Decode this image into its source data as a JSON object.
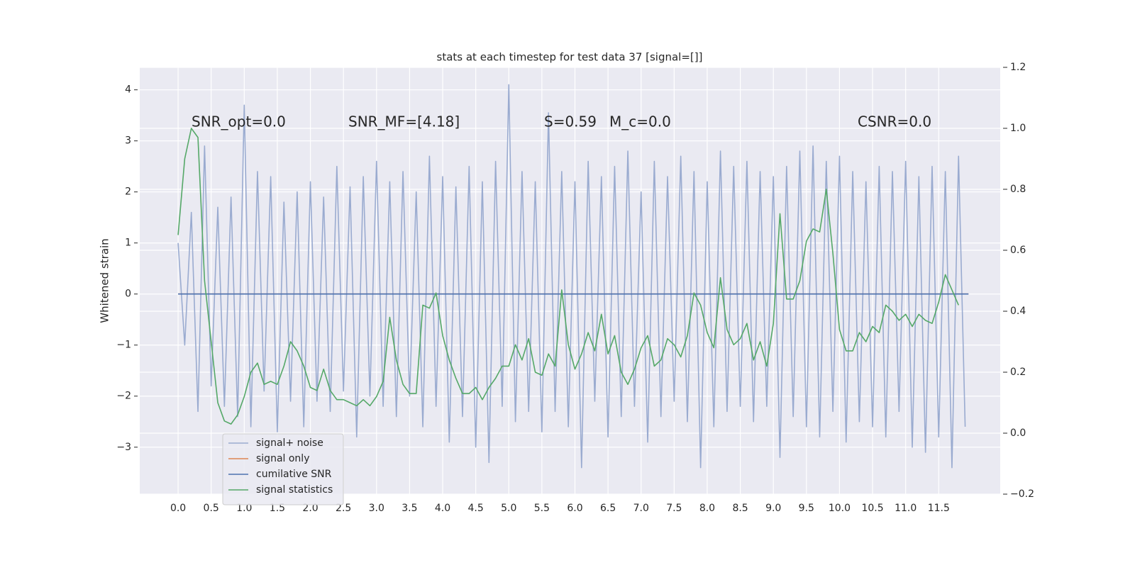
{
  "chart_data": {
    "type": "line",
    "title": "stats at each timestep for test data 37 [signal=[]]",
    "ylabel": "Whitened strain",
    "annotations": [
      "SNR_opt=0.0",
      "SNR_MF=[4.18]",
      "S=0.59",
      "M_c=0.0",
      "CSNR=0.0"
    ],
    "xlim": [
      -0.58,
      12.43
    ],
    "xticks": [
      {
        "value": 0,
        "label": "0.0"
      },
      0.5,
      {
        "value": 1,
        "label": "1.0"
      },
      1.5,
      {
        "value": 2,
        "label": "2.0"
      },
      2.5,
      {
        "value": 3,
        "label": "3.0"
      },
      3.5,
      {
        "value": 4,
        "label": "4.0"
      },
      4.5,
      {
        "value": 5,
        "label": "5.0"
      },
      5.5,
      {
        "value": 6,
        "label": "6.0"
      },
      6.5,
      {
        "value": 7,
        "label": "7.0"
      },
      7.5,
      {
        "value": 8,
        "label": "8.0"
      },
      8.5,
      {
        "value": 9,
        "label": "9.0"
      },
      9.5,
      {
        "value": 10,
        "label": "10.0"
      },
      10.5,
      {
        "value": 11,
        "label": "11.0"
      },
      11.5
    ],
    "ylim": [
      -3.92,
      4.44
    ],
    "yticks": [
      {
        "value": -3,
        "label": "−3"
      },
      {
        "value": -2,
        "label": "−2"
      },
      {
        "value": -1,
        "label": "−1"
      },
      0,
      1,
      2,
      3,
      4
    ],
    "y2lim": [
      -0.2,
      1.2
    ],
    "y2ticks": [
      {
        "value": -0.2,
        "label": "−0.2"
      },
      {
        "value": 0,
        "label": "0.0"
      },
      0.2,
      0.4,
      0.6,
      0.8,
      {
        "value": 1,
        "label": "1.0"
      },
      1.2
    ],
    "grid": true,
    "legend": "lower left",
    "series": [
      {
        "name": "signal+ noise",
        "color": "#9aabd0",
        "x": [
          0,
          0.1,
          0.2,
          0.3,
          0.4,
          0.5,
          0.6,
          0.7,
          0.8,
          0.9,
          1,
          1.1,
          1.2,
          1.3,
          1.4,
          1.5,
          1.6,
          1.7,
          1.8,
          1.9,
          2,
          2.1,
          2.2,
          2.3,
          2.4,
          2.5,
          2.6,
          2.7,
          2.8,
          2.9,
          3,
          3.1,
          3.2,
          3.3,
          3.4,
          3.5,
          3.6,
          3.7,
          3.8,
          3.9,
          4,
          4.1,
          4.2,
          4.3,
          4.4,
          4.5,
          4.6,
          4.7,
          4.8,
          4.9,
          5,
          5.1,
          5.2,
          5.3,
          5.4,
          5.5,
          5.6,
          5.7,
          5.8,
          5.9,
          6,
          6.1,
          6.2,
          6.3,
          6.4,
          6.5,
          6.6,
          6.7,
          6.8,
          6.9,
          7,
          7.1,
          7.2,
          7.3,
          7.4,
          7.5,
          7.6,
          7.7,
          7.8,
          7.9,
          8,
          8.1,
          8.2,
          8.3,
          8.4,
          8.5,
          8.6,
          8.7,
          8.8,
          8.9,
          9,
          9.1,
          9.2,
          9.3,
          9.4,
          9.5,
          9.6,
          9.7,
          9.8,
          9.9,
          10,
          10.1,
          10.2,
          10.3,
          10.4,
          10.5,
          10.6,
          10.7,
          10.8,
          10.9,
          11,
          11.1,
          11.2,
          11.3,
          11.4,
          11.5,
          11.6,
          11.7,
          11.8,
          11.9
        ],
        "values": [
          1.0,
          -1.0,
          1.6,
          -2.3,
          2.9,
          -1.8,
          1.7,
          -2.2,
          1.9,
          -2.4,
          3.7,
          -2.6,
          2.4,
          -1.9,
          2.3,
          -2.7,
          1.8,
          -2.1,
          2.0,
          -2.6,
          2.2,
          -2.1,
          1.9,
          -2.3,
          2.5,
          -1.9,
          2.1,
          -2.8,
          2.3,
          -2.0,
          2.6,
          -2.2,
          2.2,
          -2.4,
          2.4,
          -2.0,
          2.0,
          -2.6,
          2.7,
          -2.2,
          2.3,
          -2.9,
          2.1,
          -2.4,
          2.5,
          -3.0,
          2.2,
          -3.3,
          2.6,
          -2.2,
          4.1,
          -2.5,
          2.4,
          -2.3,
          2.2,
          -2.7,
          3.55,
          -2.3,
          2.4,
          -2.6,
          2.2,
          -3.4,
          2.6,
          -2.1,
          2.3,
          -2.8,
          2.5,
          -2.4,
          2.8,
          -2.2,
          2.0,
          -2.9,
          2.6,
          -2.4,
          2.3,
          -2.1,
          2.7,
          -2.5,
          2.4,
          -3.4,
          2.2,
          -2.6,
          2.8,
          -2.3,
          2.5,
          -2.2,
          2.6,
          -2.5,
          2.4,
          -2.2,
          2.3,
          -3.2,
          2.5,
          -2.4,
          2.8,
          -2.6,
          2.9,
          -2.8,
          2.6,
          -2.3,
          2.7,
          -2.9,
          2.4,
          -2.5,
          2.2,
          -2.6,
          2.5,
          -2.8,
          2.4,
          -2.3,
          2.6,
          -3.0,
          2.3,
          -3.1,
          2.5,
          -2.8,
          2.4,
          -3.4,
          2.7,
          -2.6
        ]
      },
      {
        "name": "signal only",
        "color": "#dd8452",
        "x": [
          0,
          11.95
        ],
        "values": [
          0,
          0
        ]
      },
      {
        "name": "cumilative SNR",
        "color": "#4c72b0",
        "x": [
          0,
          11.95
        ],
        "values": [
          0,
          0
        ]
      },
      {
        "name": "signal statistics",
        "color": "#55a868",
        "axis": "y2",
        "x": [
          0,
          0.1,
          0.2,
          0.3,
          0.4,
          0.5,
          0.6,
          0.7,
          0.8,
          0.9,
          1,
          1.1,
          1.2,
          1.3,
          1.4,
          1.5,
          1.6,
          1.7,
          1.8,
          1.9,
          2,
          2.1,
          2.2,
          2.3,
          2.4,
          2.5,
          2.6,
          2.7,
          2.8,
          2.9,
          3,
          3.1,
          3.2,
          3.3,
          3.4,
          3.5,
          3.6,
          3.7,
          3.8,
          3.9,
          4,
          4.1,
          4.2,
          4.3,
          4.4,
          4.5,
          4.6,
          4.7,
          4.8,
          4.9,
          5,
          5.1,
          5.2,
          5.3,
          5.4,
          5.5,
          5.6,
          5.7,
          5.8,
          5.9,
          6,
          6.1,
          6.2,
          6.3,
          6.4,
          6.5,
          6.6,
          6.7,
          6.8,
          6.9,
          7,
          7.1,
          7.2,
          7.3,
          7.4,
          7.5,
          7.6,
          7.7,
          7.8,
          7.9,
          8,
          8.1,
          8.2,
          8.3,
          8.4,
          8.5,
          8.6,
          8.7,
          8.8,
          8.9,
          9,
          9.1,
          9.2,
          9.3,
          9.4,
          9.5,
          9.6,
          9.7,
          9.8,
          9.9,
          10,
          10.1,
          10.2,
          10.3,
          10.4,
          10.5,
          10.6,
          10.7,
          10.8,
          10.9,
          11,
          11.1,
          11.2,
          11.3,
          11.4,
          11.5,
          11.6,
          11.7,
          11.8
        ],
        "values": [
          0.65,
          0.9,
          1.0,
          0.97,
          0.5,
          0.3,
          0.1,
          0.04,
          0.03,
          0.06,
          0.12,
          0.2,
          0.23,
          0.16,
          0.17,
          0.16,
          0.22,
          0.3,
          0.27,
          0.22,
          0.15,
          0.14,
          0.21,
          0.14,
          0.11,
          0.11,
          0.1,
          0.09,
          0.11,
          0.09,
          0.12,
          0.17,
          0.38,
          0.24,
          0.16,
          0.13,
          0.13,
          0.42,
          0.41,
          0.46,
          0.32,
          0.24,
          0.18,
          0.13,
          0.13,
          0.15,
          0.11,
          0.15,
          0.18,
          0.22,
          0.22,
          0.29,
          0.24,
          0.31,
          0.2,
          0.19,
          0.26,
          0.22,
          0.47,
          0.29,
          0.21,
          0.26,
          0.33,
          0.27,
          0.39,
          0.26,
          0.32,
          0.2,
          0.16,
          0.21,
          0.28,
          0.32,
          0.22,
          0.24,
          0.31,
          0.29,
          0.25,
          0.32,
          0.46,
          0.42,
          0.33,
          0.28,
          0.51,
          0.34,
          0.29,
          0.31,
          0.36,
          0.24,
          0.3,
          0.22,
          0.36,
          0.72,
          0.44,
          0.44,
          0.5,
          0.63,
          0.67,
          0.66,
          0.8,
          0.59,
          0.34,
          0.27,
          0.27,
          0.33,
          0.3,
          0.35,
          0.33,
          0.42,
          0.4,
          0.37,
          0.39,
          0.35,
          0.39,
          0.37,
          0.36,
          0.43,
          0.52,
          0.47,
          0.42
        ]
      }
    ]
  }
}
